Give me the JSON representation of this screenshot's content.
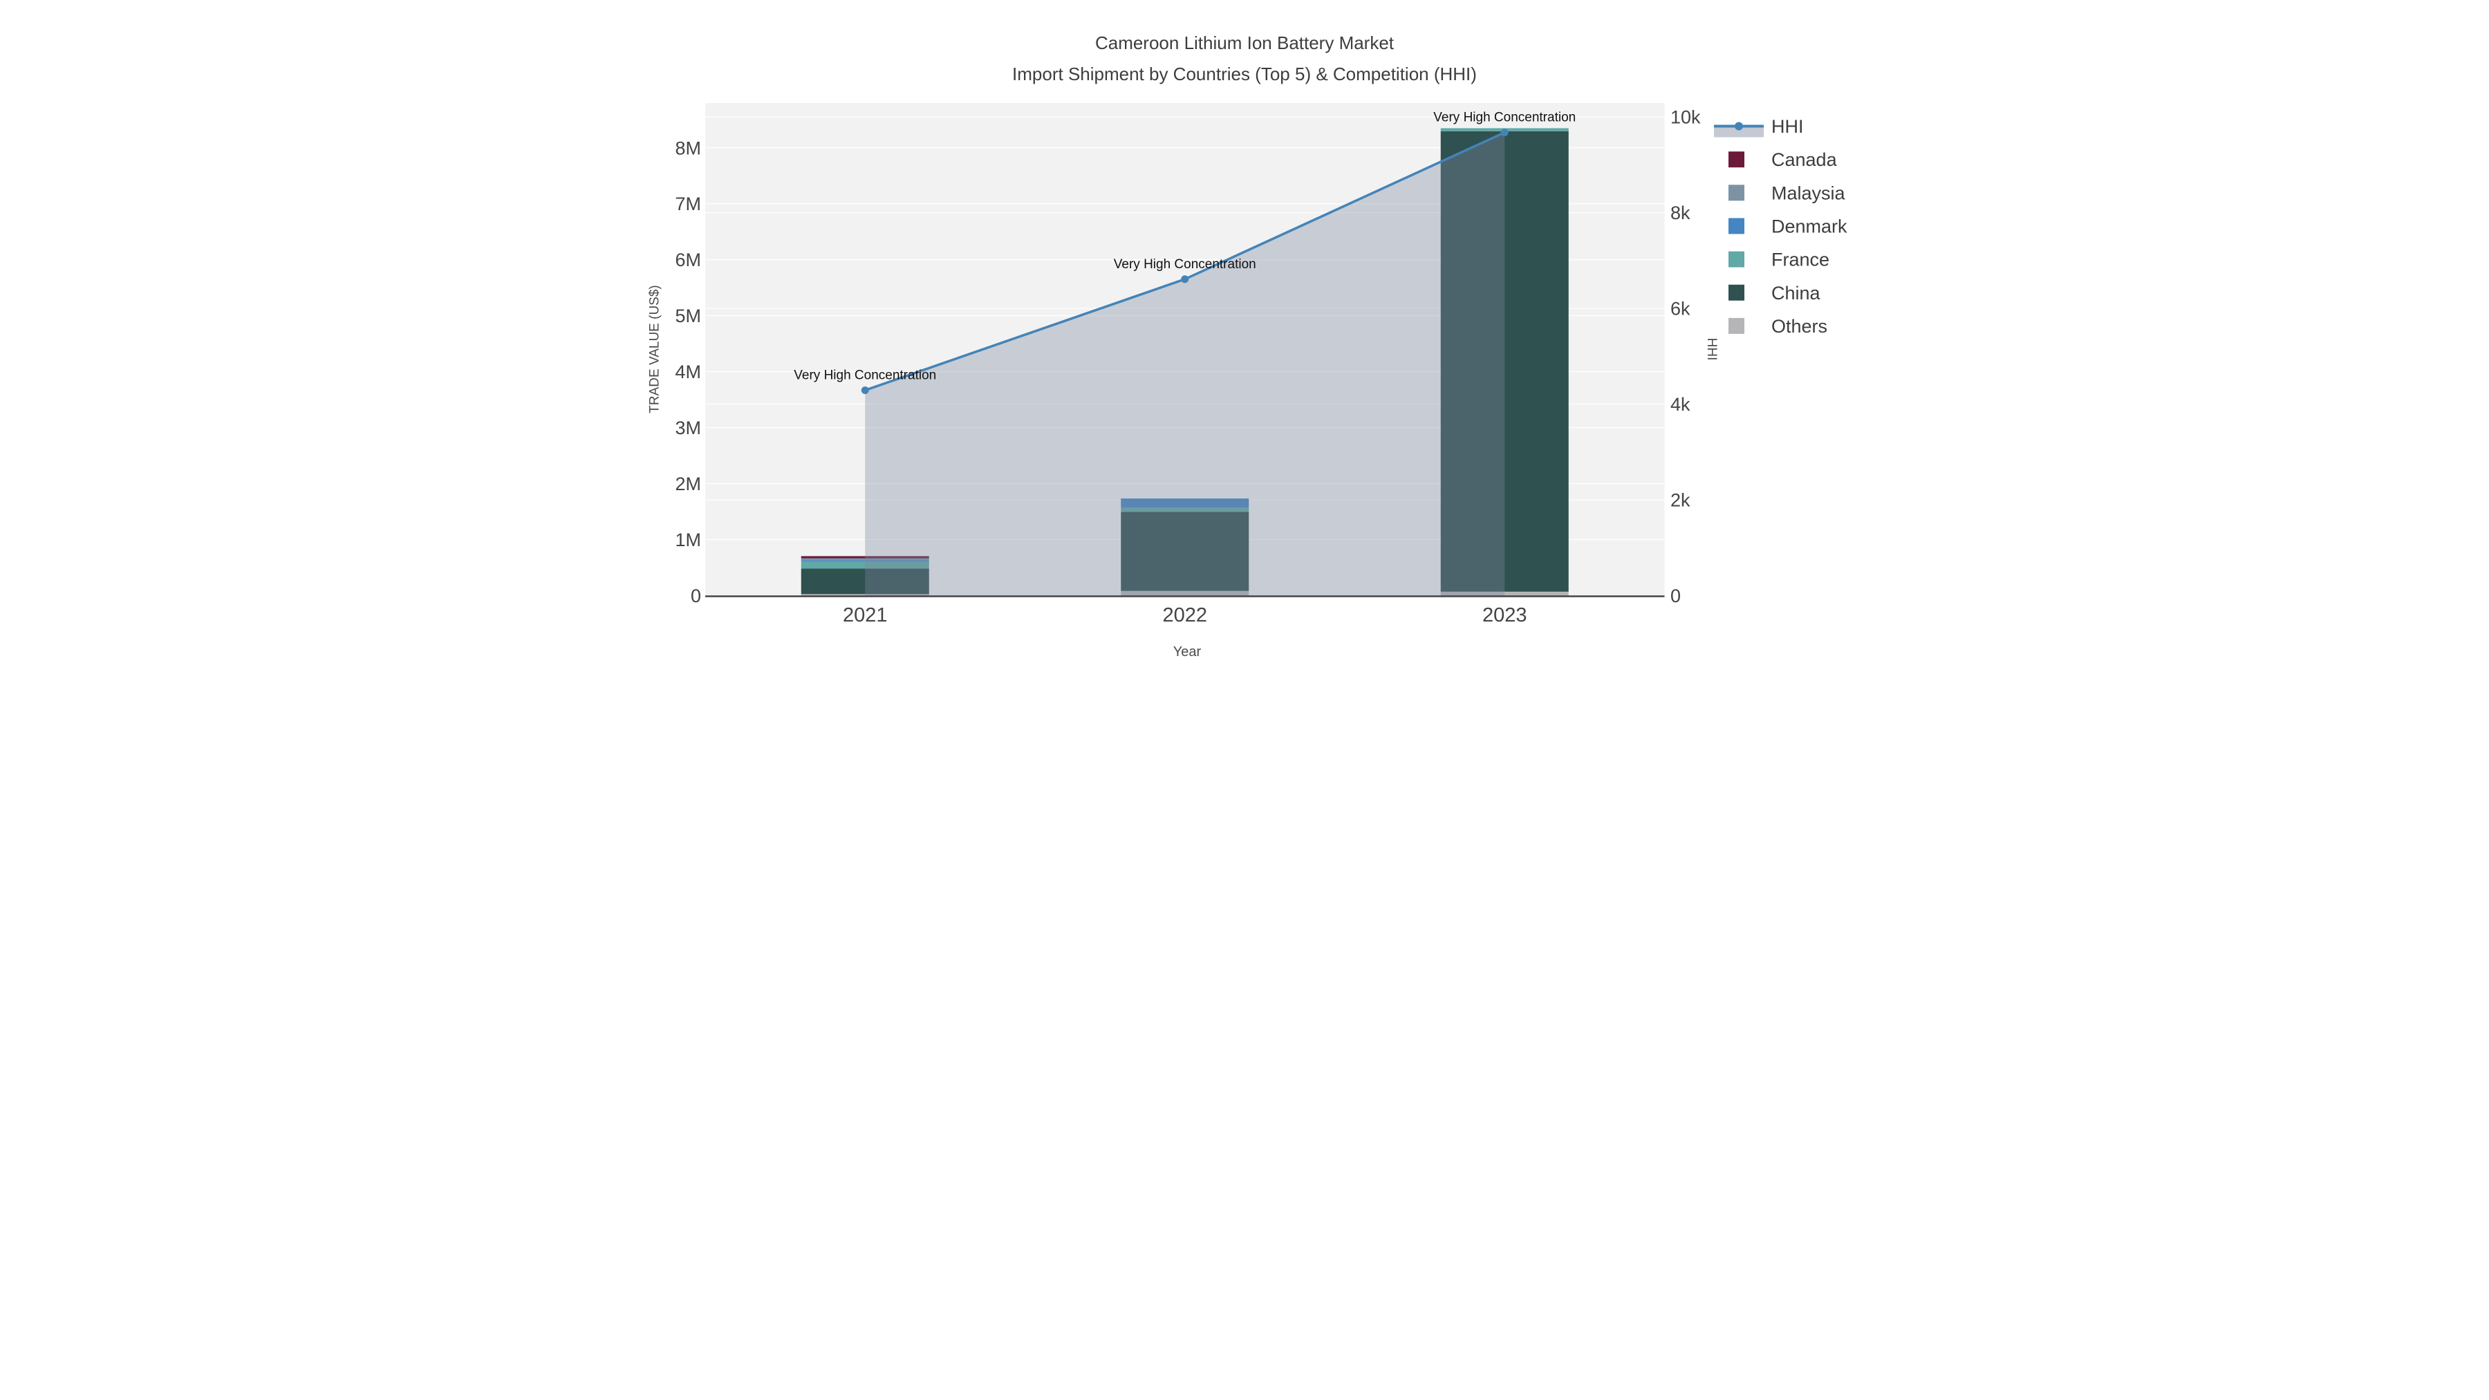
{
  "chart_data": {
    "type": "combo: stacked-bar + line (secondary axis) with area fill",
    "title": "Cameroon Lithium Ion Battery Market",
    "subtitle": "Import Shipment by Countries (Top 5) & Competition (HHI)",
    "xlabel": "Year",
    "ylabel_left": "TRADE VALUE (US$)",
    "ylabel_right": "HHI",
    "categories": [
      "2021",
      "2022",
      "2023"
    ],
    "bar_series_bottom_to_top": [
      {
        "name": "Others",
        "color": "#b5b5b7",
        "values": [
          27000,
          84000,
          70000
        ]
      },
      {
        "name": "China",
        "color": "#2f5150",
        "values": [
          455000,
          1413000,
          8225000
        ]
      },
      {
        "name": "France",
        "color": "#61a8a6",
        "values": [
          130000,
          78000,
          55000
        ]
      },
      {
        "name": "Denmark",
        "color": "#4585c1",
        "values": [
          22000,
          160000,
          0
        ]
      },
      {
        "name": "Malaysia",
        "color": "#7e92a6",
        "values": [
          33000,
          0,
          0
        ]
      },
      {
        "name": "Canada",
        "color": "#6b1a39",
        "values": [
          38000,
          0,
          0
        ]
      }
    ],
    "bar_totals": [
      705000,
      1735000,
      8350000
    ],
    "line_series": {
      "name": "HHI",
      "color": "#4384b8",
      "area_fill": "rgba(125,136,158,0.36)",
      "values": [
        4290,
        6610,
        9675
      ]
    },
    "annotations": [
      "Very High Concentration",
      "Very High Concentration",
      "Very High Concentration"
    ],
    "y_left": {
      "tick_labels": [
        "0",
        "1M",
        "2M",
        "3M",
        "4M",
        "5M",
        "6M",
        "7M",
        "8M"
      ],
      "tick_values": [
        0,
        1000000,
        2000000,
        3000000,
        4000000,
        5000000,
        6000000,
        7000000,
        8000000
      ],
      "range": [
        0,
        8800000
      ]
    },
    "y_right": {
      "tick_labels": [
        "0",
        "2k",
        "4k",
        "6k",
        "8k",
        "10k"
      ],
      "tick_values": [
        0,
        2000,
        4000,
        6000,
        8000,
        10000
      ],
      "range": [
        0,
        10290
      ]
    },
    "legend": {
      "items": [
        {
          "label": "HHI",
          "type": "line",
          "color": "#4384b8",
          "band": "rgba(125,136,158,0.45)"
        },
        {
          "label": "Canada",
          "type": "swatch",
          "color": "#6b1a39"
        },
        {
          "label": "Malaysia",
          "type": "swatch",
          "color": "#7e92a6"
        },
        {
          "label": "Denmark",
          "type": "swatch",
          "color": "#4585c1"
        },
        {
          "label": "France",
          "type": "swatch",
          "color": "#61a8a6"
        },
        {
          "label": "China",
          "type": "swatch",
          "color": "#2f5150"
        },
        {
          "label": "Others",
          "type": "swatch",
          "color": "#b5b5b7"
        }
      ]
    },
    "style": {
      "plot_bg": "#f2f2f2",
      "grid_color": "#ffffff",
      "axis_line_color": "#444444"
    }
  }
}
